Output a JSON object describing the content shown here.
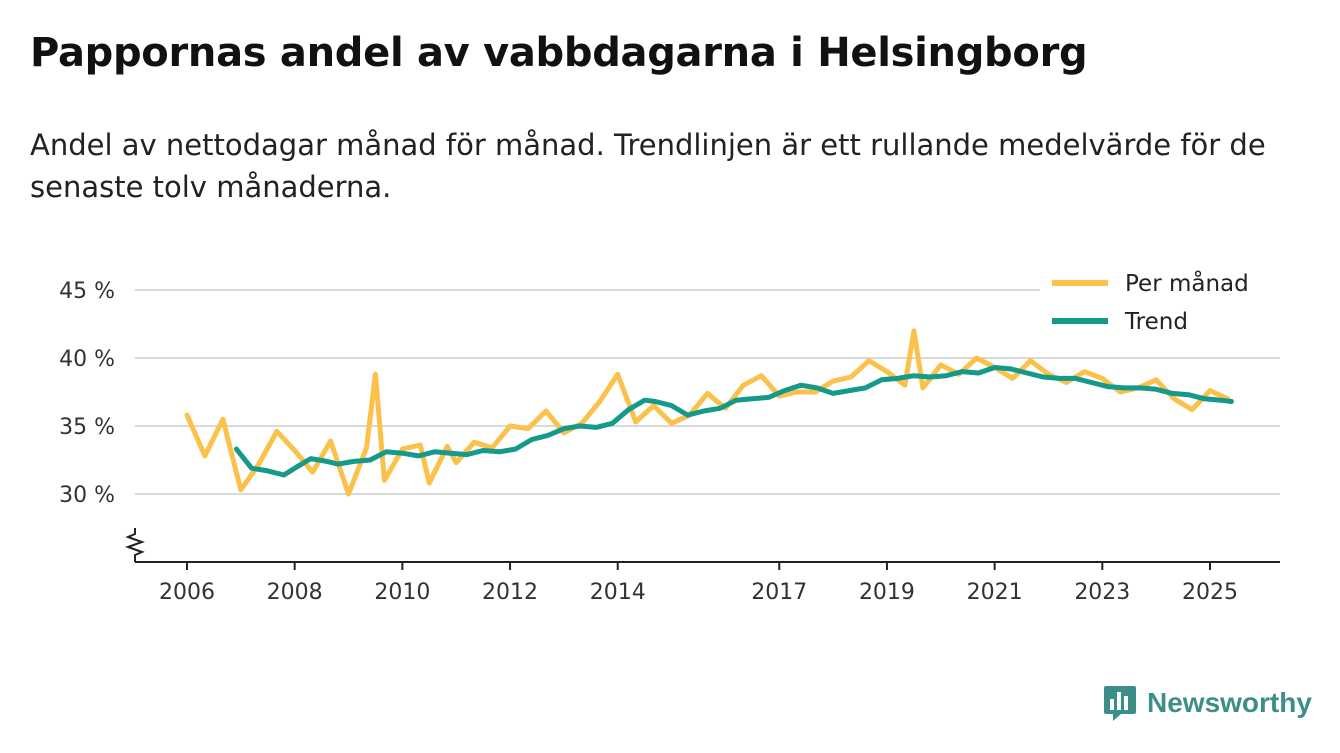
{
  "header": {
    "title": "Pappornas andel av vabbdagarna i Helsingborg",
    "subtitle": "Andel av nettodagar månad för månad. Trendlinjen är ett rullande medelvärde för de senaste tolv månaderna."
  },
  "brand": {
    "name": "Newsworthy",
    "icon": "newsworthy-logo-icon",
    "color": "#3d8e89"
  },
  "colors": {
    "monthly": "#fbc14b",
    "trend": "#14998a",
    "grid": "#d9d9d9",
    "axis": "#222222"
  },
  "chart_data": {
    "type": "line",
    "title": "Pappornas andel av vabbdagarna i Helsingborg",
    "ylabel": "",
    "xlabel": "",
    "ylim": [
      25,
      46
    ],
    "xlim": [
      2005.5,
      2026.3
    ],
    "y_ticks": [
      30,
      35,
      40,
      45
    ],
    "y_tick_labels": [
      "30 %",
      "35 %",
      "40 %",
      "45 %"
    ],
    "x_ticks": [
      2006,
      2008,
      2010,
      2012,
      2014,
      2017,
      2019,
      2021,
      2023,
      2025
    ],
    "x_tick_labels": [
      "2006",
      "2008",
      "2010",
      "2012",
      "2014",
      "2017",
      "2019",
      "2021",
      "2023",
      "2025"
    ],
    "axis_break": true,
    "legend_position": "top-right",
    "series": [
      {
        "name": "Per månad",
        "x": [
          2006.0,
          2006.333,
          2006.667,
          2007.0,
          2007.333,
          2007.667,
          2008.0,
          2008.333,
          2008.667,
          2009.0,
          2009.333,
          2009.5,
          2009.667,
          2010.0,
          2010.333,
          2010.5,
          2010.833,
          2011.0,
          2011.333,
          2011.667,
          2012.0,
          2012.333,
          2012.667,
          2013.0,
          2013.333,
          2013.667,
          2014.0,
          2014.333,
          2014.667,
          2015.0,
          2015.333,
          2015.667,
          2016.0,
          2016.333,
          2016.667,
          2017.0,
          2017.333,
          2017.667,
          2018.0,
          2018.333,
          2018.667,
          2019.0,
          2019.333,
          2019.5,
          2019.667,
          2020.0,
          2020.333,
          2020.667,
          2021.0,
          2021.333,
          2021.667,
          2022.0,
          2022.333,
          2022.667,
          2023.0,
          2023.333,
          2023.667,
          2024.0,
          2024.333,
          2024.667,
          2025.0,
          2025.333
        ],
        "values": [
          35.8,
          32.8,
          35.5,
          30.3,
          32.2,
          34.6,
          33.2,
          31.6,
          33.9,
          30.0,
          33.4,
          38.8,
          31.0,
          33.3,
          33.6,
          30.8,
          33.5,
          32.3,
          33.8,
          33.4,
          35.0,
          34.8,
          36.1,
          34.5,
          35.2,
          36.8,
          38.8,
          35.3,
          36.5,
          35.2,
          35.8,
          37.4,
          36.3,
          38.0,
          38.7,
          37.2,
          37.5,
          37.5,
          38.3,
          38.6,
          39.8,
          39.0,
          38.0,
          42.0,
          37.8,
          39.5,
          38.8,
          40.0,
          39.3,
          38.5,
          39.8,
          38.8,
          38.2,
          39.0,
          38.5,
          37.5,
          37.8,
          38.4,
          37.0,
          36.2,
          37.6,
          37.0
        ]
      },
      {
        "name": "Trend",
        "x": [
          2006.917,
          2007.2,
          2007.5,
          2007.8,
          2008.0,
          2008.3,
          2008.6,
          2008.8,
          2009.1,
          2009.4,
          2009.7,
          2010.0,
          2010.3,
          2010.6,
          2010.9,
          2011.2,
          2011.5,
          2011.8,
          2012.1,
          2012.4,
          2012.7,
          2013.0,
          2013.3,
          2013.6,
          2013.9,
          2014.2,
          2014.5,
          2014.7,
          2015.0,
          2015.3,
          2015.6,
          2015.9,
          2016.2,
          2016.5,
          2016.8,
          2017.1,
          2017.4,
          2017.7,
          2018.0,
          2018.3,
          2018.6,
          2018.9,
          2019.2,
          2019.5,
          2019.8,
          2020.1,
          2020.4,
          2020.7,
          2021.0,
          2021.3,
          2021.6,
          2021.9,
          2022.2,
          2022.5,
          2022.8,
          2023.1,
          2023.4,
          2023.7,
          2024.0,
          2024.3,
          2024.6,
          2024.9,
          2025.2,
          2025.4
        ],
        "values": [
          33.3,
          31.9,
          31.7,
          31.4,
          31.9,
          32.6,
          32.4,
          32.2,
          32.4,
          32.5,
          33.1,
          33.0,
          32.8,
          33.1,
          33.0,
          32.9,
          33.2,
          33.1,
          33.3,
          34.0,
          34.3,
          34.8,
          35.0,
          34.9,
          35.2,
          36.2,
          36.9,
          36.8,
          36.5,
          35.8,
          36.1,
          36.3,
          36.9,
          37.0,
          37.1,
          37.6,
          38.0,
          37.8,
          37.4,
          37.6,
          37.8,
          38.4,
          38.5,
          38.7,
          38.6,
          38.7,
          39.0,
          38.9,
          39.3,
          39.2,
          38.9,
          38.6,
          38.5,
          38.5,
          38.2,
          37.9,
          37.8,
          37.8,
          37.7,
          37.4,
          37.3,
          37.0,
          36.9,
          36.8
        ]
      }
    ]
  }
}
